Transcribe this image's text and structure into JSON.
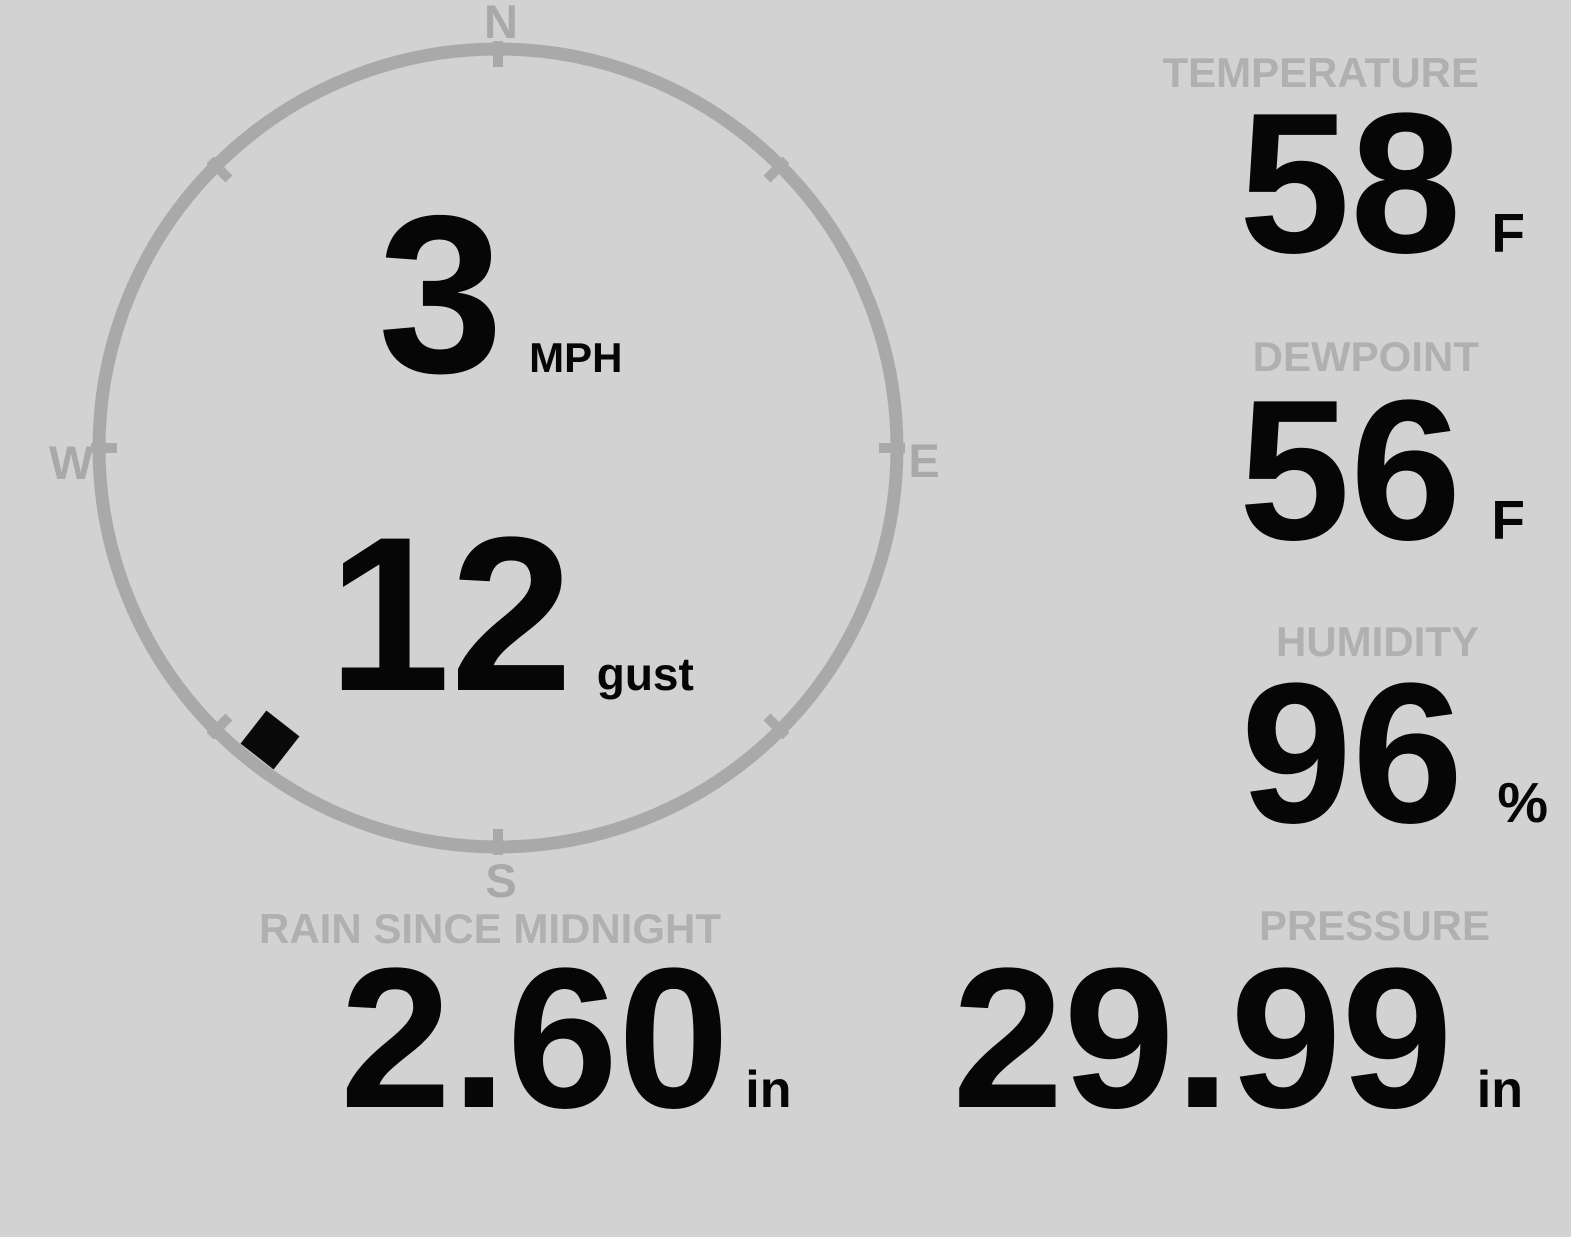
{
  "wind": {
    "speed": "3",
    "speed_unit": "MPH",
    "gust": "12",
    "gust_label": "gust",
    "direction_deg": 218,
    "compass": {
      "north": "N",
      "east": "E",
      "south": "S",
      "west": "W"
    }
  },
  "metrics": {
    "temperature": {
      "label": "TEMPERATURE",
      "value": "58",
      "unit": "F"
    },
    "dewpoint": {
      "label": "DEWPOINT",
      "value": "56",
      "unit": "F"
    },
    "humidity": {
      "label": "HUMIDITY",
      "value": "96",
      "unit": "%"
    },
    "rain": {
      "label": "RAIN SINCE MIDNIGHT",
      "value": "2.60",
      "unit": "in"
    },
    "pressure": {
      "label": "PRESSURE",
      "value": "29.99",
      "unit": "in"
    }
  },
  "colors": {
    "background": "#d2d2d2",
    "dial": "#a9a9a9",
    "label": "#b0b0b0",
    "value": "#060606",
    "marker": "#0a0a0a"
  }
}
